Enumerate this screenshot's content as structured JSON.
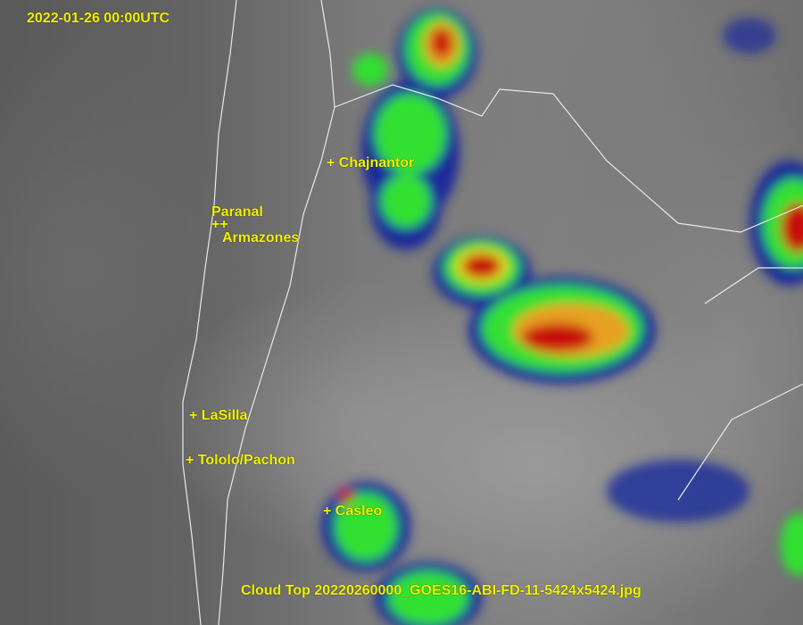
{
  "timestamp": "2022-01-26 00:00UTC",
  "caption": "Cloud Top 20220260000_GOES16-ABI-FD-11-5424x5424.jpg",
  "sites": {
    "chajnantor": "+ Chajnantor",
    "paranal": "Paranal",
    "paranal_markers": "++",
    "armazones": "Armazones",
    "lasilla": "+ LaSilla",
    "tololo": "+ Tololo/Pachon",
    "casleo": "+ Casleo"
  },
  "colors": {
    "label": "#f2f200",
    "border": "#e8e8e8",
    "cold_blue": "#1a2a9a",
    "cold_green": "#30e030",
    "cold_yellow": "#e8e020",
    "cold_red": "#c81010"
  }
}
